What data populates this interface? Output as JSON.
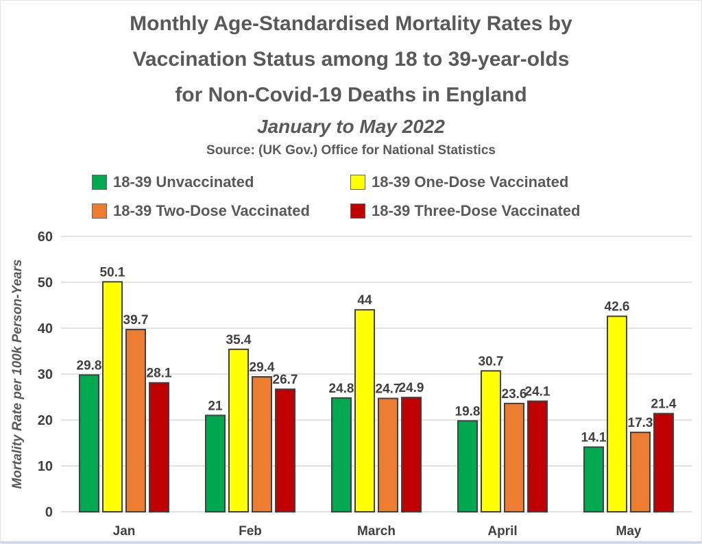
{
  "header": {
    "title_lines": [
      "Monthly Age-Standardised Mortality Rates by",
      "Vaccination Status among 18 to 39-year-olds",
      "for Non-Covid-19 Deaths in England"
    ],
    "subtitle": "January to May 2022",
    "source": "Source: (UK Gov.) Office for National Statistics"
  },
  "legend": {
    "items": [
      {
        "label": "18-39 Unvaccinated",
        "color": "#00A850"
      },
      {
        "label": "18-39 One-Dose Vaccinated",
        "color": "#FFFF00"
      },
      {
        "label": "18-39 Two-Dose Vaccinated",
        "color": "#ED7D31"
      },
      {
        "label": "18-39 Three-Dose Vaccinated",
        "color": "#C00000"
      }
    ]
  },
  "chart_data": {
    "type": "bar",
    "title": "Monthly Age-Standardised Mortality Rates by Vaccination Status among 18 to 39-year-olds for Non-Covid-19 Deaths in England",
    "subtitle": "January to May 2022",
    "source": "Source: (UK Gov.) Office for National Statistics",
    "categories": [
      "Jan",
      "Feb",
      "March",
      "April",
      "May"
    ],
    "series": [
      {
        "name": "18-39 Unvaccinated",
        "color": "#00A850",
        "values": [
          29.8,
          21,
          24.8,
          19.8,
          14.1
        ]
      },
      {
        "name": "18-39 One-Dose Vaccinated",
        "color": "#FFFF00",
        "values": [
          50.1,
          35.4,
          44,
          30.7,
          42.6
        ]
      },
      {
        "name": "18-39 Two-Dose Vaccinated",
        "color": "#ED7D31",
        "values": [
          39.7,
          29.4,
          24.7,
          23.6,
          17.3
        ]
      },
      {
        "name": "18-39 Three-Dose Vaccinated",
        "color": "#C00000",
        "values": [
          28.1,
          26.7,
          24.9,
          24.1,
          21.4
        ]
      }
    ],
    "xlabel": "",
    "ylabel": "Mortality Rate per 100k Person-Years",
    "ylim": [
      0,
      60
    ],
    "ytick_step": 10,
    "yticks": [
      0,
      10,
      20,
      30,
      40,
      50,
      60
    ],
    "grid": true,
    "legend_position": "top",
    "colors": {
      "bar_outline": "#404040",
      "grid_line": "#d9d9d9",
      "tick_label": "#404040",
      "data_label": "#404040",
      "axis_title": "#595959"
    }
  }
}
